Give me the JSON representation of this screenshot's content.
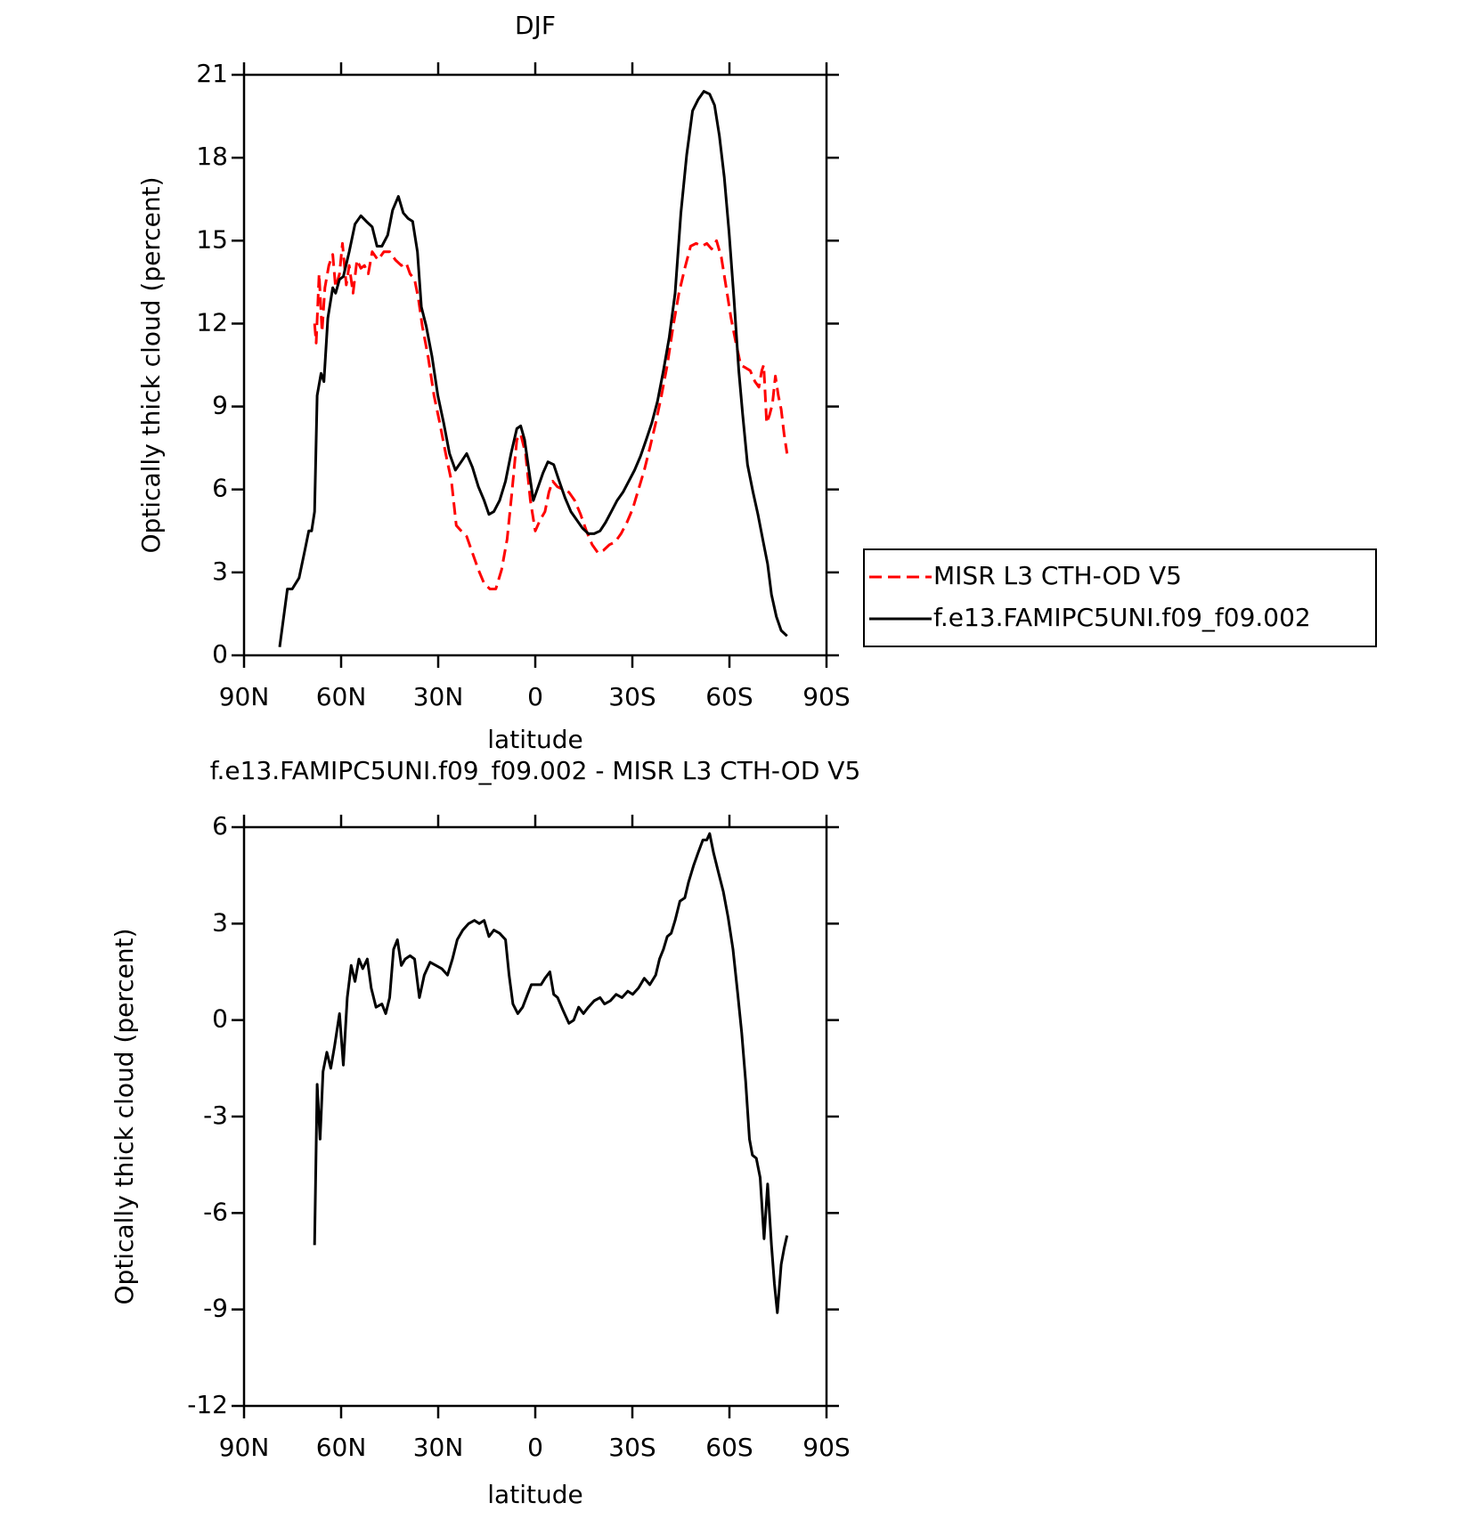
{
  "chart_data": [
    {
      "type": "line",
      "title": "DJF",
      "xlabel": "latitude",
      "ylabel": "Optically thick cloud (percent)",
      "xlim": [
        90,
        -90
      ],
      "ylim": [
        0,
        21
      ],
      "xticks": [
        {
          "value": 90,
          "label": "90N"
        },
        {
          "value": 60,
          "label": "60N"
        },
        {
          "value": 30,
          "label": "30N"
        },
        0,
        {
          "value": -30,
          "label": "30S"
        },
        {
          "value": -60,
          "label": "60S"
        },
        {
          "value": -90,
          "label": "90S"
        }
      ],
      "yticks": [
        0,
        3,
        6,
        9,
        12,
        15,
        18,
        21
      ],
      "legend": "right",
      "series": [
        {
          "name": "MISR L3 CTH-OD V5",
          "color": "#ff0000",
          "line_style": "dashed",
          "x": [
            68.2,
            67.7,
            66.8,
            65.9,
            65.0,
            63.8,
            62.6,
            61.7,
            60.5,
            59.6,
            58.4,
            57.5,
            56.3,
            55.1,
            53.9,
            52.8,
            51.6,
            50.4,
            48.6,
            46.8,
            45.0,
            43.2,
            41.4,
            39.9,
            38.7,
            37.3,
            36.1,
            34.9,
            33.1,
            31.3,
            29.5,
            27.7,
            25.9,
            24.4,
            22.9,
            21.2,
            19.4,
            17.6,
            15.8,
            14.0,
            12.2,
            10.4,
            8.7,
            7.2,
            5.7,
            4.5,
            3.0,
            1.5,
            0.0,
            -1.5,
            -3.0,
            -4.2,
            -5.4,
            -6.8,
            -8.6,
            -10.4,
            -12.2,
            -14.0,
            -15.8,
            -17.6,
            -19.4,
            -21.1,
            -22.9,
            -24.7,
            -26.5,
            -28.3,
            -30.1,
            -31.9,
            -33.7,
            -35.4,
            -37.2,
            -39.0,
            -40.8,
            -42.6,
            -44.4,
            -46.2,
            -48.0,
            -49.7,
            -51.5,
            -53.0,
            -54.5,
            -56.0,
            -57.5,
            -59.0,
            -60.5,
            -62.0,
            -63.5,
            -65.0,
            -66.4,
            -67.9,
            -69.1,
            -70.0,
            -70.6,
            -71.5,
            -72.4,
            -73.3,
            -74.2,
            -75.1,
            -76.0,
            -76.9,
            -77.8
          ],
          "values": [
            12.0,
            11.3,
            13.8,
            11.7,
            13.3,
            14.1,
            14.5,
            13.3,
            13.8,
            14.9,
            13.4,
            14.1,
            13.1,
            14.3,
            14.0,
            14.1,
            13.8,
            14.6,
            14.3,
            14.6,
            14.6,
            14.3,
            14.1,
            14.2,
            13.8,
            13.6,
            12.9,
            11.9,
            10.8,
            9.4,
            8.4,
            7.3,
            6.3,
            4.7,
            4.5,
            4.3,
            3.7,
            3.1,
            2.6,
            2.4,
            2.4,
            3.1,
            4.2,
            5.9,
            7.8,
            8.0,
            7.3,
            5.6,
            4.5,
            4.9,
            5.2,
            5.9,
            6.3,
            6.1,
            6.0,
            5.9,
            5.6,
            5.1,
            4.5,
            4.0,
            3.7,
            3.8,
            4.0,
            4.1,
            4.4,
            4.8,
            5.3,
            6.0,
            6.7,
            7.5,
            8.4,
            9.4,
            10.5,
            11.9,
            13.1,
            14.0,
            14.8,
            14.9,
            14.8,
            14.9,
            14.7,
            15.0,
            14.4,
            13.3,
            12.2,
            11.3,
            10.5,
            10.4,
            10.3,
            9.9,
            9.7,
            10.3,
            10.5,
            8.4,
            8.7,
            9.1,
            10.1,
            9.4,
            8.9,
            8.0,
            7.3
          ]
        },
        {
          "name": "f.e13.FAMIPC5UNI.f09_f09.002",
          "color": "#000000",
          "line_style": "solid",
          "x": [
            79.0,
            76.6,
            75.1,
            73.0,
            71.2,
            70.0,
            69.1,
            68.2,
            67.4,
            66.2,
            65.3,
            64.1,
            62.6,
            61.7,
            60.5,
            59.3,
            57.5,
            55.7,
            53.9,
            52.2,
            50.4,
            48.9,
            47.4,
            45.6,
            44.1,
            42.3,
            40.8,
            39.3,
            37.9,
            36.4,
            35.2,
            33.7,
            31.9,
            30.1,
            28.3,
            26.5,
            24.7,
            22.9,
            21.2,
            19.4,
            17.6,
            15.8,
            14.3,
            12.8,
            11.0,
            9.2,
            7.5,
            5.7,
            4.5,
            3.3,
            2.1,
            0.6,
            -0.9,
            -2.4,
            -3.9,
            -5.7,
            -7.4,
            -9.2,
            -11.0,
            -12.8,
            -14.6,
            -16.4,
            -18.2,
            -20.0,
            -21.7,
            -23.5,
            -25.3,
            -27.1,
            -28.9,
            -30.7,
            -32.5,
            -34.3,
            -36.0,
            -37.8,
            -39.6,
            -41.4,
            -43.2,
            -45.0,
            -46.8,
            -48.6,
            -50.3,
            -52.1,
            -53.9,
            -55.4,
            -56.9,
            -58.4,
            -59.9,
            -61.4,
            -62.9,
            -64.1,
            -65.6,
            -67.3,
            -68.8,
            -70.3,
            -71.8,
            -73.0,
            -74.5,
            -76.0,
            -77.8
          ],
          "values": [
            0.3,
            2.4,
            2.4,
            2.8,
            3.8,
            4.5,
            4.5,
            5.2,
            9.4,
            10.2,
            9.9,
            12.2,
            13.3,
            13.1,
            13.6,
            13.7,
            14.6,
            15.6,
            15.9,
            15.7,
            15.5,
            14.8,
            14.8,
            15.2,
            16.1,
            16.6,
            16.0,
            15.8,
            15.7,
            14.6,
            12.6,
            11.9,
            10.8,
            9.4,
            8.4,
            7.3,
            6.7,
            7.0,
            7.3,
            6.8,
            6.1,
            5.6,
            5.1,
            5.2,
            5.6,
            6.3,
            7.3,
            8.2,
            8.3,
            7.8,
            6.8,
            5.6,
            6.1,
            6.6,
            7.0,
            6.9,
            6.3,
            5.7,
            5.2,
            4.9,
            4.6,
            4.4,
            4.4,
            4.5,
            4.8,
            5.2,
            5.6,
            5.9,
            6.3,
            6.7,
            7.2,
            7.8,
            8.4,
            9.2,
            10.3,
            11.5,
            13.1,
            16.0,
            18.1,
            19.7,
            20.1,
            20.4,
            20.3,
            19.9,
            18.8,
            17.3,
            15.3,
            12.9,
            10.3,
            8.7,
            6.9,
            5.9,
            5.1,
            4.2,
            3.3,
            2.2,
            1.4,
            0.9,
            0.7
          ]
        }
      ]
    },
    {
      "type": "line",
      "title": "f.e13.FAMIPC5UNI.f09_f09.002 - MISR L3 CTH-OD V5",
      "xlabel": "latitude",
      "ylabel": "Optically thick cloud (percent)",
      "xlim": [
        90,
        -90
      ],
      "ylim": [
        -12,
        6
      ],
      "xticks": [
        {
          "value": 90,
          "label": "90N"
        },
        {
          "value": 60,
          "label": "60N"
        },
        {
          "value": 30,
          "label": "30N"
        },
        0,
        {
          "value": -30,
          "label": "30S"
        },
        {
          "value": -60,
          "label": "60S"
        },
        {
          "value": -90,
          "label": "90S"
        }
      ],
      "yticks": [
        -12,
        -9,
        -6,
        -3,
        0,
        3,
        6
      ],
      "series": [
        {
          "color": "#000000",
          "line_style": "solid",
          "x": [
            68.2,
            67.4,
            66.5,
            65.6,
            64.4,
            63.2,
            62.0,
            60.5,
            59.3,
            58.1,
            56.9,
            55.7,
            54.5,
            53.3,
            51.9,
            50.7,
            49.2,
            47.4,
            46.2,
            45.0,
            43.8,
            42.6,
            41.4,
            40.2,
            38.7,
            37.3,
            35.8,
            34.3,
            32.5,
            30.7,
            28.9,
            27.1,
            25.6,
            24.1,
            22.4,
            20.6,
            18.8,
            17.3,
            15.8,
            14.3,
            12.8,
            11.0,
            9.2,
            8.1,
            6.9,
            5.4,
            3.9,
            2.4,
            1.2,
            -0.3,
            -1.8,
            -3.0,
            -4.5,
            -5.7,
            -6.9,
            -8.6,
            -10.4,
            -11.9,
            -13.4,
            -14.9,
            -16.4,
            -18.2,
            -20.0,
            -21.4,
            -23.2,
            -25.0,
            -26.8,
            -28.6,
            -30.1,
            -31.9,
            -33.7,
            -35.4,
            -37.2,
            -38.4,
            -39.6,
            -40.8,
            -42.0,
            -43.2,
            -44.7,
            -46.2,
            -47.4,
            -48.9,
            -50.3,
            -51.8,
            -53.0,
            -53.9,
            -55.1,
            -56.6,
            -58.1,
            -59.6,
            -61.1,
            -62.6,
            -63.8,
            -65.0,
            -66.2,
            -67.1,
            -68.3,
            -69.5,
            -70.7,
            -71.8,
            -73.0,
            -73.9,
            -74.8,
            -76.0,
            -76.9,
            -77.8
          ],
          "values": [
            -7.0,
            -2.0,
            -3.7,
            -1.6,
            -1.0,
            -1.5,
            -0.8,
            0.2,
            -1.4,
            0.7,
            1.7,
            1.2,
            1.9,
            1.6,
            1.9,
            1.0,
            0.4,
            0.5,
            0.2,
            0.7,
            2.2,
            2.5,
            1.7,
            1.9,
            2.0,
            1.9,
            0.7,
            1.4,
            1.8,
            1.7,
            1.6,
            1.4,
            1.9,
            2.5,
            2.8,
            3.0,
            3.1,
            3.0,
            3.1,
            2.6,
            2.8,
            2.7,
            2.5,
            1.4,
            0.5,
            0.2,
            0.4,
            0.8,
            1.1,
            1.1,
            1.1,
            1.3,
            1.5,
            0.8,
            0.7,
            0.3,
            -0.1,
            0.0,
            0.4,
            0.2,
            0.4,
            0.6,
            0.7,
            0.5,
            0.6,
            0.8,
            0.7,
            0.9,
            0.8,
            1.0,
            1.3,
            1.1,
            1.4,
            1.9,
            2.2,
            2.6,
            2.7,
            3.1,
            3.7,
            3.8,
            4.3,
            4.8,
            5.2,
            5.6,
            5.6,
            5.8,
            5.2,
            4.6,
            4.0,
            3.2,
            2.2,
            0.8,
            -0.4,
            -1.9,
            -3.7,
            -4.2,
            -4.3,
            -4.9,
            -6.8,
            -5.1,
            -7.0,
            -8.2,
            -9.1,
            -7.6,
            -7.1,
            -6.7
          ]
        }
      ]
    }
  ]
}
